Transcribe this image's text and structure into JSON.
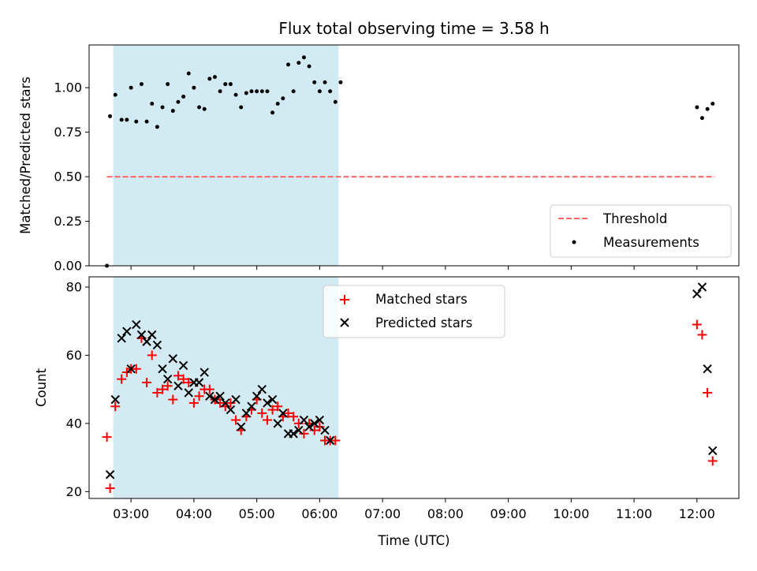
{
  "title": "Flux total observing time = 3.58 h",
  "colors": {
    "band": "#add8e6",
    "threshold": "#ff6666",
    "measurement": "#000000",
    "matched": "#ff0000",
    "predicted": "#000000"
  },
  "chart_data": [
    {
      "type": "scatter",
      "ylabel": "Matched/Predicted stars",
      "xlabel": "",
      "xlim": [
        "02:20",
        "12:40"
      ],
      "ylim": [
        0,
        1.24
      ],
      "yticks": [
        "0.00",
        "0.25",
        "0.50",
        "0.75",
        "1.00"
      ],
      "highlight_band": [
        "02:43",
        "06:18"
      ],
      "legend": {
        "position": "lower right",
        "entries": [
          "Threshold",
          "Measurements"
        ]
      },
      "threshold": {
        "name": "Threshold",
        "value": 0.5,
        "x_range": [
          "02:37",
          "12:17"
        ],
        "style": "dashed"
      },
      "series": [
        {
          "name": "Measurements",
          "marker": "dot",
          "points": [
            [
              "02:37",
              0.0
            ],
            [
              "02:40",
              0.84
            ],
            [
              "02:45",
              0.96
            ],
            [
              "02:51",
              0.82
            ],
            [
              "02:56",
              0.82
            ],
            [
              "03:00",
              1.0
            ],
            [
              "03:05",
              0.81
            ],
            [
              "03:10",
              1.02
            ],
            [
              "03:15",
              0.81
            ],
            [
              "03:20",
              0.91
            ],
            [
              "03:25",
              0.78
            ],
            [
              "03:30",
              0.89
            ],
            [
              "03:35",
              1.02
            ],
            [
              "03:40",
              0.87
            ],
            [
              "03:45",
              0.92
            ],
            [
              "03:50",
              0.95
            ],
            [
              "03:55",
              1.08
            ],
            [
              "04:00",
              1.0
            ],
            [
              "04:05",
              0.89
            ],
            [
              "04:10",
              0.88
            ],
            [
              "04:15",
              1.05
            ],
            [
              "04:20",
              1.06
            ],
            [
              "04:25",
              0.98
            ],
            [
              "04:30",
              1.02
            ],
            [
              "04:35",
              1.02
            ],
            [
              "04:40",
              0.96
            ],
            [
              "04:45",
              0.89
            ],
            [
              "04:50",
              0.97
            ],
            [
              "04:55",
              0.98
            ],
            [
              "05:00",
              0.98
            ],
            [
              "05:05",
              0.98
            ],
            [
              "05:10",
              0.98
            ],
            [
              "05:15",
              0.86
            ],
            [
              "05:20",
              0.91
            ],
            [
              "05:25",
              0.94
            ],
            [
              "05:30",
              1.13
            ],
            [
              "05:35",
              0.98
            ],
            [
              "05:40",
              1.14
            ],
            [
              "05:45",
              1.17
            ],
            [
              "05:50",
              1.12
            ],
            [
              "05:55",
              1.03
            ],
            [
              "06:00",
              0.98
            ],
            [
              "06:05",
              1.03
            ],
            [
              "06:10",
              0.98
            ],
            [
              "06:15",
              0.92
            ],
            [
              "06:20",
              1.03
            ],
            [
              "12:00",
              0.89
            ],
            [
              "12:05",
              0.83
            ],
            [
              "12:10",
              0.88
            ],
            [
              "12:15",
              0.91
            ]
          ]
        }
      ]
    },
    {
      "type": "scatter",
      "ylabel": "Count",
      "xlabel": "Time (UTC)",
      "xlim": [
        "02:20",
        "12:40"
      ],
      "ylim": [
        18,
        83
      ],
      "yticks": [
        "20",
        "40",
        "60",
        "80"
      ],
      "xticks": [
        "03:00",
        "04:00",
        "05:00",
        "06:00",
        "07:00",
        "08:00",
        "09:00",
        "10:00",
        "11:00",
        "12:00"
      ],
      "highlight_band": [
        "02:43",
        "06:18"
      ],
      "legend": {
        "position": "upper center",
        "entries": [
          "Matched stars",
          "Predicted stars"
        ]
      },
      "series": [
        {
          "name": "Matched stars",
          "marker": "plus",
          "points": [
            [
              "02:37",
              36
            ],
            [
              "02:40",
              21
            ],
            [
              "02:45",
              45
            ],
            [
              "02:51",
              53
            ],
            [
              "02:56",
              55
            ],
            [
              "03:00",
              56
            ],
            [
              "03:05",
              56
            ],
            [
              "03:10",
              65
            ],
            [
              "03:15",
              52
            ],
            [
              "03:20",
              60
            ],
            [
              "03:25",
              49
            ],
            [
              "03:30",
              50
            ],
            [
              "03:35",
              51
            ],
            [
              "03:40",
              47
            ],
            [
              "03:45",
              54
            ],
            [
              "03:50",
              53
            ],
            [
              "03:55",
              52
            ],
            [
              "04:00",
              46
            ],
            [
              "04:05",
              48
            ],
            [
              "04:10",
              50
            ],
            [
              "04:15",
              50
            ],
            [
              "04:20",
              47
            ],
            [
              "04:25",
              46
            ],
            [
              "04:30",
              45
            ],
            [
              "04:35",
              46
            ],
            [
              "04:40",
              41
            ],
            [
              "04:45",
              38
            ],
            [
              "04:50",
              42
            ],
            [
              "04:55",
              44
            ],
            [
              "05:00",
              47
            ],
            [
              "05:05",
              43
            ],
            [
              "05:10",
              41
            ],
            [
              "05:15",
              44
            ],
            [
              "05:20",
              45
            ],
            [
              "05:25",
              42
            ],
            [
              "05:30",
              43
            ],
            [
              "05:35",
              42
            ],
            [
              "05:40",
              40
            ],
            [
              "05:45",
              37
            ],
            [
              "05:50",
              40
            ],
            [
              "05:55",
              38
            ],
            [
              "06:00",
              39
            ],
            [
              "06:05",
              35
            ],
            [
              "06:10",
              35
            ],
            [
              "06:15",
              35
            ],
            [
              "12:00",
              69
            ],
            [
              "12:05",
              66
            ],
            [
              "12:10",
              49
            ],
            [
              "12:15",
              29
            ]
          ]
        },
        {
          "name": "Predicted stars",
          "marker": "x",
          "points": [
            [
              "02:40",
              25
            ],
            [
              "02:45",
              47
            ],
            [
              "02:51",
              65
            ],
            [
              "02:56",
              67
            ],
            [
              "03:00",
              56
            ],
            [
              "03:05",
              69
            ],
            [
              "03:10",
              66
            ],
            [
              "03:15",
              64
            ],
            [
              "03:20",
              66
            ],
            [
              "03:25",
              63
            ],
            [
              "03:30",
              56
            ],
            [
              "03:35",
              53
            ],
            [
              "03:40",
              59
            ],
            [
              "03:45",
              51
            ],
            [
              "03:50",
              57
            ],
            [
              "03:55",
              49
            ],
            [
              "04:00",
              52
            ],
            [
              "04:05",
              52
            ],
            [
              "04:10",
              55
            ],
            [
              "04:15",
              48
            ],
            [
              "04:20",
              47
            ],
            [
              "04:25",
              48
            ],
            [
              "04:30",
              46
            ],
            [
              "04:35",
              44
            ],
            [
              "04:40",
              47
            ],
            [
              "04:45",
              39
            ],
            [
              "04:50",
              43
            ],
            [
              "04:55",
              45
            ],
            [
              "05:00",
              48
            ],
            [
              "05:05",
              50
            ],
            [
              "05:10",
              46
            ],
            [
              "05:15",
              47
            ],
            [
              "05:20",
              40
            ],
            [
              "05:25",
              43
            ],
            [
              "05:30",
              37
            ],
            [
              "05:35",
              37
            ],
            [
              "05:40",
              38
            ],
            [
              "05:45",
              41
            ],
            [
              "05:50",
              39
            ],
            [
              "05:55",
              40
            ],
            [
              "06:00",
              41
            ],
            [
              "06:05",
              38
            ],
            [
              "06:10",
              35
            ],
            [
              "12:00",
              78
            ],
            [
              "12:05",
              80
            ],
            [
              "12:10",
              56
            ],
            [
              "12:15",
              32
            ]
          ]
        }
      ]
    }
  ]
}
